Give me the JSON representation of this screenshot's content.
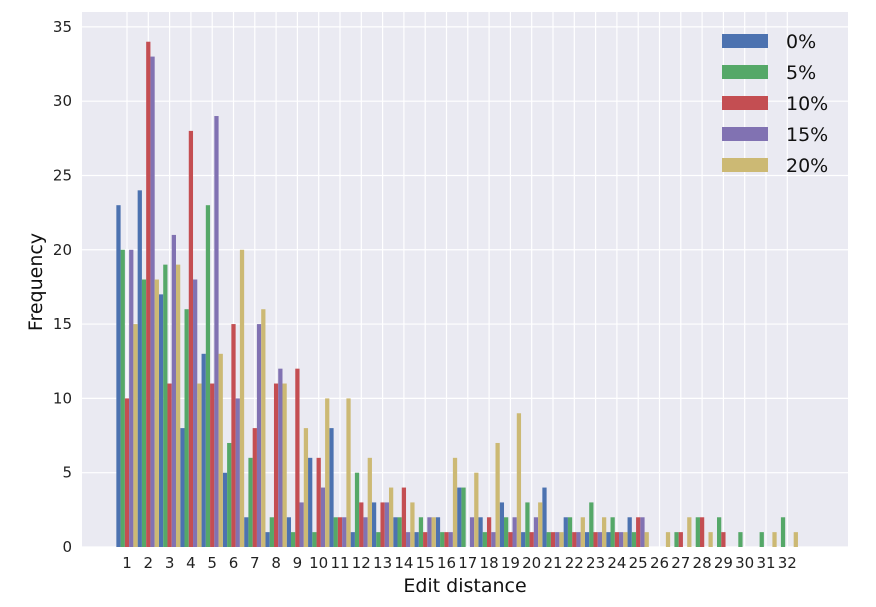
{
  "chart_data": {
    "type": "bar",
    "xlabel": "Edit distance",
    "ylabel": "Frequency",
    "ylim": [
      0,
      36
    ],
    "yticks": [
      0,
      5,
      10,
      15,
      20,
      25,
      30,
      35
    ],
    "grid": true,
    "legend_position": "top-right",
    "categories": [
      "1",
      "2",
      "3",
      "4",
      "5",
      "6",
      "7",
      "8",
      "9",
      "10",
      "11",
      "12",
      "13",
      "14",
      "15",
      "16",
      "17",
      "18",
      "19",
      "20",
      "21",
      "22",
      "23",
      "24",
      "25",
      "26",
      "27",
      "28",
      "29",
      "30",
      "31",
      "32"
    ],
    "series": [
      {
        "name": "0%",
        "color": "#4c72b0",
        "values": [
          23,
          24,
          17,
          8,
          13,
          5,
          2,
          1,
          2,
          6,
          8,
          1,
          3,
          2,
          1,
          2,
          4,
          2,
          3,
          1,
          4,
          2,
          1,
          1,
          2,
          0,
          0,
          0,
          0,
          0,
          0,
          0
        ]
      },
      {
        "name": "5%",
        "color": "#55a868",
        "values": [
          20,
          18,
          19,
          16,
          23,
          7,
          6,
          2,
          1,
          1,
          2,
          5,
          1,
          2,
          2,
          1,
          4,
          1,
          2,
          3,
          1,
          2,
          3,
          2,
          1,
          0,
          1,
          2,
          2,
          1,
          1,
          2
        ]
      },
      {
        "name": "10%",
        "color": "#c44e52",
        "values": [
          10,
          34,
          11,
          28,
          11,
          15,
          8,
          11,
          12,
          6,
          2,
          3,
          3,
          4,
          1,
          1,
          0,
          2,
          1,
          1,
          1,
          1,
          1,
          1,
          2,
          0,
          1,
          2,
          1,
          0,
          0,
          0
        ]
      },
      {
        "name": "15%",
        "color": "#8172b2",
        "values": [
          20,
          33,
          21,
          18,
          29,
          10,
          15,
          12,
          3,
          4,
          2,
          2,
          3,
          1,
          2,
          1,
          2,
          1,
          2,
          2,
          1,
          1,
          1,
          1,
          2,
          0,
          0,
          0,
          0,
          0,
          0,
          0
        ]
      },
      {
        "name": "20%",
        "color": "#ccb974",
        "values": [
          15,
          18,
          19,
          11,
          13,
          20,
          16,
          11,
          8,
          10,
          10,
          6,
          4,
          3,
          2,
          6,
          5,
          7,
          9,
          3,
          1,
          2,
          2,
          1,
          1,
          1,
          2,
          1,
          0,
          0,
          1,
          1
        ]
      }
    ]
  }
}
